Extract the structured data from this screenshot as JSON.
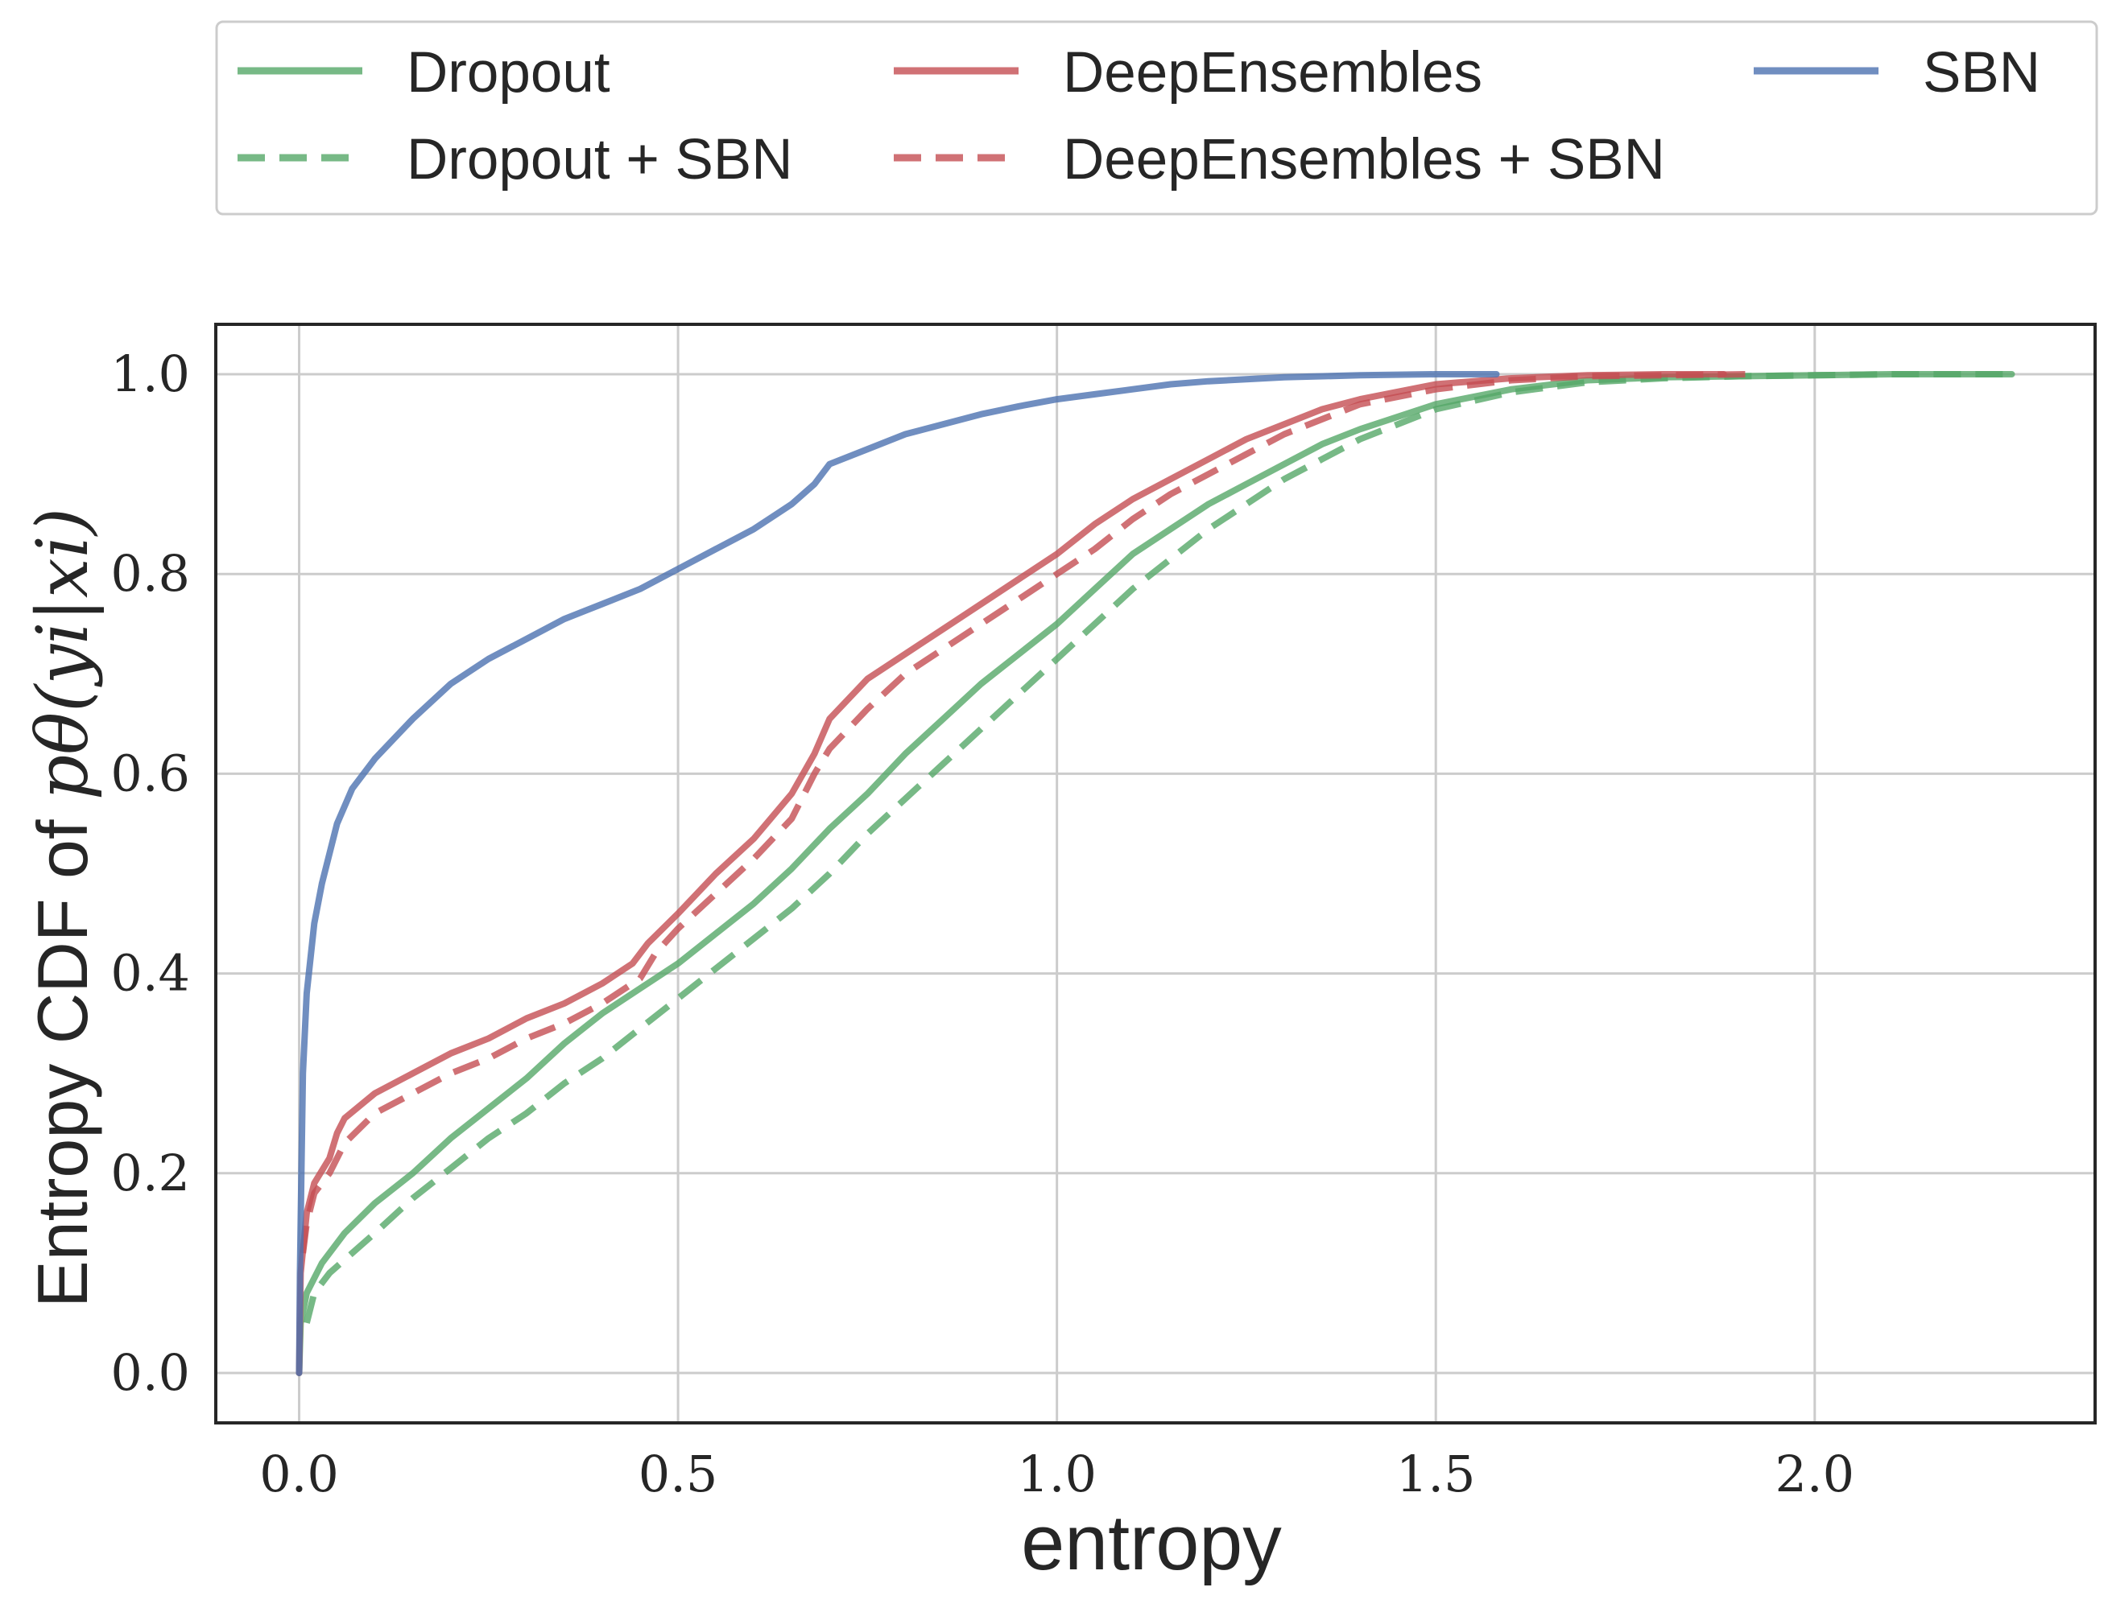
{
  "chart_data": {
    "type": "line",
    "xlabel": "entropy",
    "ylabel_text": "Entropy CDF of ",
    "ylabel_math": "pθ(yi|xi)",
    "xlim": [
      -0.11,
      2.37
    ],
    "ylim": [
      -0.05,
      1.05
    ],
    "xticks": [
      0.0,
      0.5,
      1.0,
      1.5,
      2.0
    ],
    "xtick_labels": [
      "0.0",
      "0.5",
      "1.0",
      "1.5",
      "2.0"
    ],
    "yticks": [
      0.0,
      0.2,
      0.4,
      0.6,
      0.8,
      1.0
    ],
    "ytick_labels": [
      "0.0",
      "0.2",
      "0.4",
      "0.6",
      "0.8",
      "1.0"
    ],
    "grid": true,
    "legend_position": "top, above plot, 3 columns",
    "series": [
      {
        "name": "Dropout",
        "color": "#55a868",
        "dash": "solid",
        "x": [
          0,
          0.002,
          0.01,
          0.03,
          0.06,
          0.1,
          0.15,
          0.2,
          0.25,
          0.3,
          0.35,
          0.4,
          0.45,
          0.5,
          0.55,
          0.6,
          0.65,
          0.7,
          0.75,
          0.8,
          0.85,
          0.9,
          0.95,
          1.0,
          1.05,
          1.1,
          1.15,
          1.2,
          1.25,
          1.3,
          1.35,
          1.4,
          1.5,
          1.6,
          1.7,
          1.8,
          1.9,
          2.0,
          2.1,
          2.26
        ],
        "y": [
          0.0,
          0.05,
          0.08,
          0.11,
          0.14,
          0.17,
          0.2,
          0.235,
          0.265,
          0.295,
          0.33,
          0.36,
          0.385,
          0.41,
          0.44,
          0.47,
          0.505,
          0.545,
          0.58,
          0.62,
          0.655,
          0.69,
          0.72,
          0.75,
          0.785,
          0.82,
          0.845,
          0.87,
          0.89,
          0.91,
          0.93,
          0.945,
          0.97,
          0.985,
          0.994,
          0.997,
          0.998,
          0.999,
          1.0,
          1.0
        ]
      },
      {
        "name": "Dropout + SBN",
        "color": "#55a868",
        "dash": "dashed",
        "x": [
          0.01,
          0.02,
          0.04,
          0.07,
          0.1,
          0.15,
          0.2,
          0.25,
          0.3,
          0.35,
          0.4,
          0.45,
          0.5,
          0.55,
          0.6,
          0.65,
          0.7,
          0.75,
          0.8,
          0.85,
          0.9,
          0.95,
          1.0,
          1.05,
          1.1,
          1.15,
          1.2,
          1.25,
          1.3,
          1.35,
          1.4,
          1.5,
          1.6,
          1.7,
          1.8,
          1.9,
          2.0,
          2.1,
          2.26
        ],
        "y": [
          0.05,
          0.08,
          0.1,
          0.12,
          0.14,
          0.175,
          0.205,
          0.235,
          0.26,
          0.29,
          0.315,
          0.345,
          0.375,
          0.405,
          0.435,
          0.465,
          0.5,
          0.54,
          0.575,
          0.61,
          0.645,
          0.68,
          0.715,
          0.75,
          0.785,
          0.815,
          0.845,
          0.87,
          0.895,
          0.915,
          0.935,
          0.965,
          0.982,
          0.992,
          0.996,
          0.998,
          0.999,
          1.0,
          1.0
        ]
      },
      {
        "name": "DeepEnsembles",
        "color": "#c44e52",
        "dash": "solid",
        "x": [
          0,
          0.002,
          0.01,
          0.02,
          0.04,
          0.05,
          0.06,
          0.1,
          0.15,
          0.2,
          0.25,
          0.3,
          0.35,
          0.4,
          0.44,
          0.46,
          0.5,
          0.55,
          0.6,
          0.65,
          0.68,
          0.7,
          0.75,
          0.8,
          0.85,
          0.9,
          0.95,
          1.0,
          1.05,
          1.1,
          1.15,
          1.2,
          1.25,
          1.3,
          1.35,
          1.4,
          1.5,
          1.6,
          1.7,
          1.8,
          1.88
        ],
        "y": [
          0.0,
          0.1,
          0.16,
          0.19,
          0.215,
          0.24,
          0.255,
          0.28,
          0.3,
          0.32,
          0.335,
          0.355,
          0.37,
          0.39,
          0.41,
          0.43,
          0.46,
          0.5,
          0.535,
          0.58,
          0.62,
          0.655,
          0.695,
          0.72,
          0.745,
          0.77,
          0.795,
          0.82,
          0.85,
          0.875,
          0.895,
          0.915,
          0.935,
          0.95,
          0.965,
          0.975,
          0.99,
          0.996,
          0.999,
          1.0,
          1.0
        ]
      },
      {
        "name": "DeepEnsembles + SBN",
        "color": "#c44e52",
        "dash": "dashed",
        "x": [
          0.005,
          0.01,
          0.02,
          0.04,
          0.06,
          0.1,
          0.15,
          0.2,
          0.25,
          0.3,
          0.35,
          0.4,
          0.45,
          0.47,
          0.5,
          0.55,
          0.6,
          0.65,
          0.68,
          0.7,
          0.75,
          0.8,
          0.85,
          0.9,
          0.95,
          1.0,
          1.05,
          1.1,
          1.15,
          1.2,
          1.25,
          1.3,
          1.35,
          1.4,
          1.5,
          1.6,
          1.7,
          1.8,
          1.91
        ],
        "y": [
          0.12,
          0.15,
          0.18,
          0.2,
          0.23,
          0.26,
          0.28,
          0.3,
          0.315,
          0.335,
          0.35,
          0.37,
          0.395,
          0.42,
          0.445,
          0.48,
          0.515,
          0.555,
          0.6,
          0.625,
          0.665,
          0.7,
          0.725,
          0.75,
          0.775,
          0.8,
          0.825,
          0.855,
          0.88,
          0.9,
          0.92,
          0.94,
          0.955,
          0.97,
          0.985,
          0.994,
          0.998,
          0.999,
          1.0
        ]
      },
      {
        "name": "SBN",
        "color": "#4c72b0",
        "dash": "solid",
        "x": [
          0,
          0.001,
          0.003,
          0.005,
          0.01,
          0.02,
          0.03,
          0.04,
          0.05,
          0.07,
          0.1,
          0.15,
          0.2,
          0.25,
          0.3,
          0.35,
          0.4,
          0.45,
          0.5,
          0.55,
          0.6,
          0.65,
          0.68,
          0.7,
          0.75,
          0.8,
          0.85,
          0.9,
          0.95,
          1.0,
          1.05,
          1.1,
          1.15,
          1.2,
          1.3,
          1.4,
          1.5,
          1.58
        ],
        "y": [
          0.0,
          0.1,
          0.2,
          0.3,
          0.38,
          0.45,
          0.49,
          0.52,
          0.55,
          0.585,
          0.615,
          0.655,
          0.69,
          0.715,
          0.735,
          0.755,
          0.77,
          0.785,
          0.805,
          0.825,
          0.845,
          0.87,
          0.89,
          0.91,
          0.925,
          0.94,
          0.95,
          0.96,
          0.968,
          0.975,
          0.98,
          0.985,
          0.99,
          0.993,
          0.997,
          0.999,
          1.0,
          1.0
        ]
      }
    ],
    "legend_order": [
      0,
      2,
      4,
      1,
      3
    ]
  }
}
